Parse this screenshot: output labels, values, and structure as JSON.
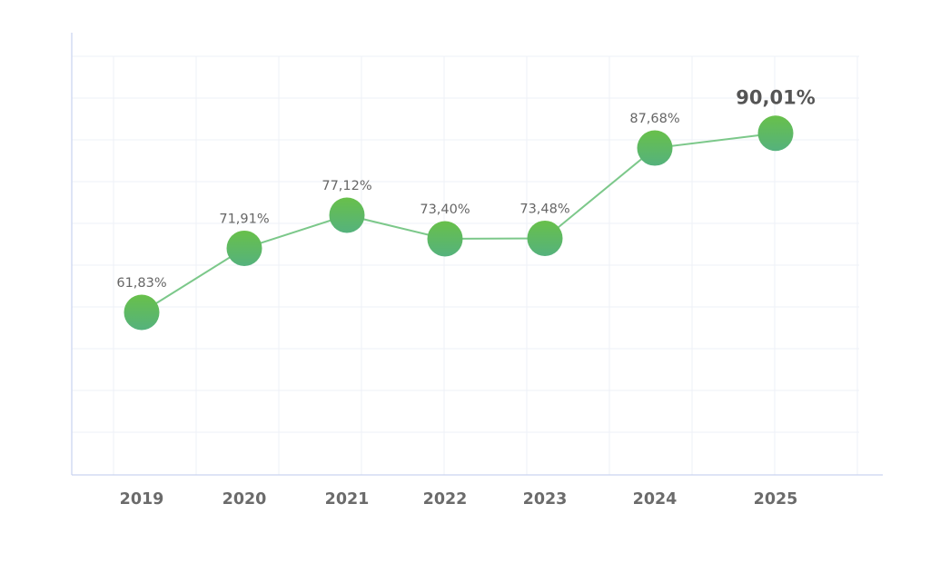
{
  "chart_data": {
    "type": "line",
    "categories": [
      "2019",
      "2020",
      "2021",
      "2022",
      "2023",
      "2024",
      "2025"
    ],
    "values": [
      61.83,
      71.91,
      77.12,
      73.4,
      73.48,
      87.68,
      90.01
    ],
    "data_labels": [
      "61,83%",
      "71,91%",
      "77,12%",
      "73,40%",
      "73,48%",
      "87,68%",
      "90,01%"
    ],
    "highlight_index": 6,
    "title": "",
    "xlabel": "",
    "ylabel": "",
    "grid": true,
    "legend": "none",
    "colors": {
      "line": "#7cc88a",
      "marker_top": "#68c04a",
      "marker_bottom": "#55b27d",
      "grid": "#eef1f7",
      "axis": "#c9d3f0",
      "tick_text": "#6b6b6b",
      "label_text": "#666666",
      "highlight_text": "#555555"
    }
  }
}
